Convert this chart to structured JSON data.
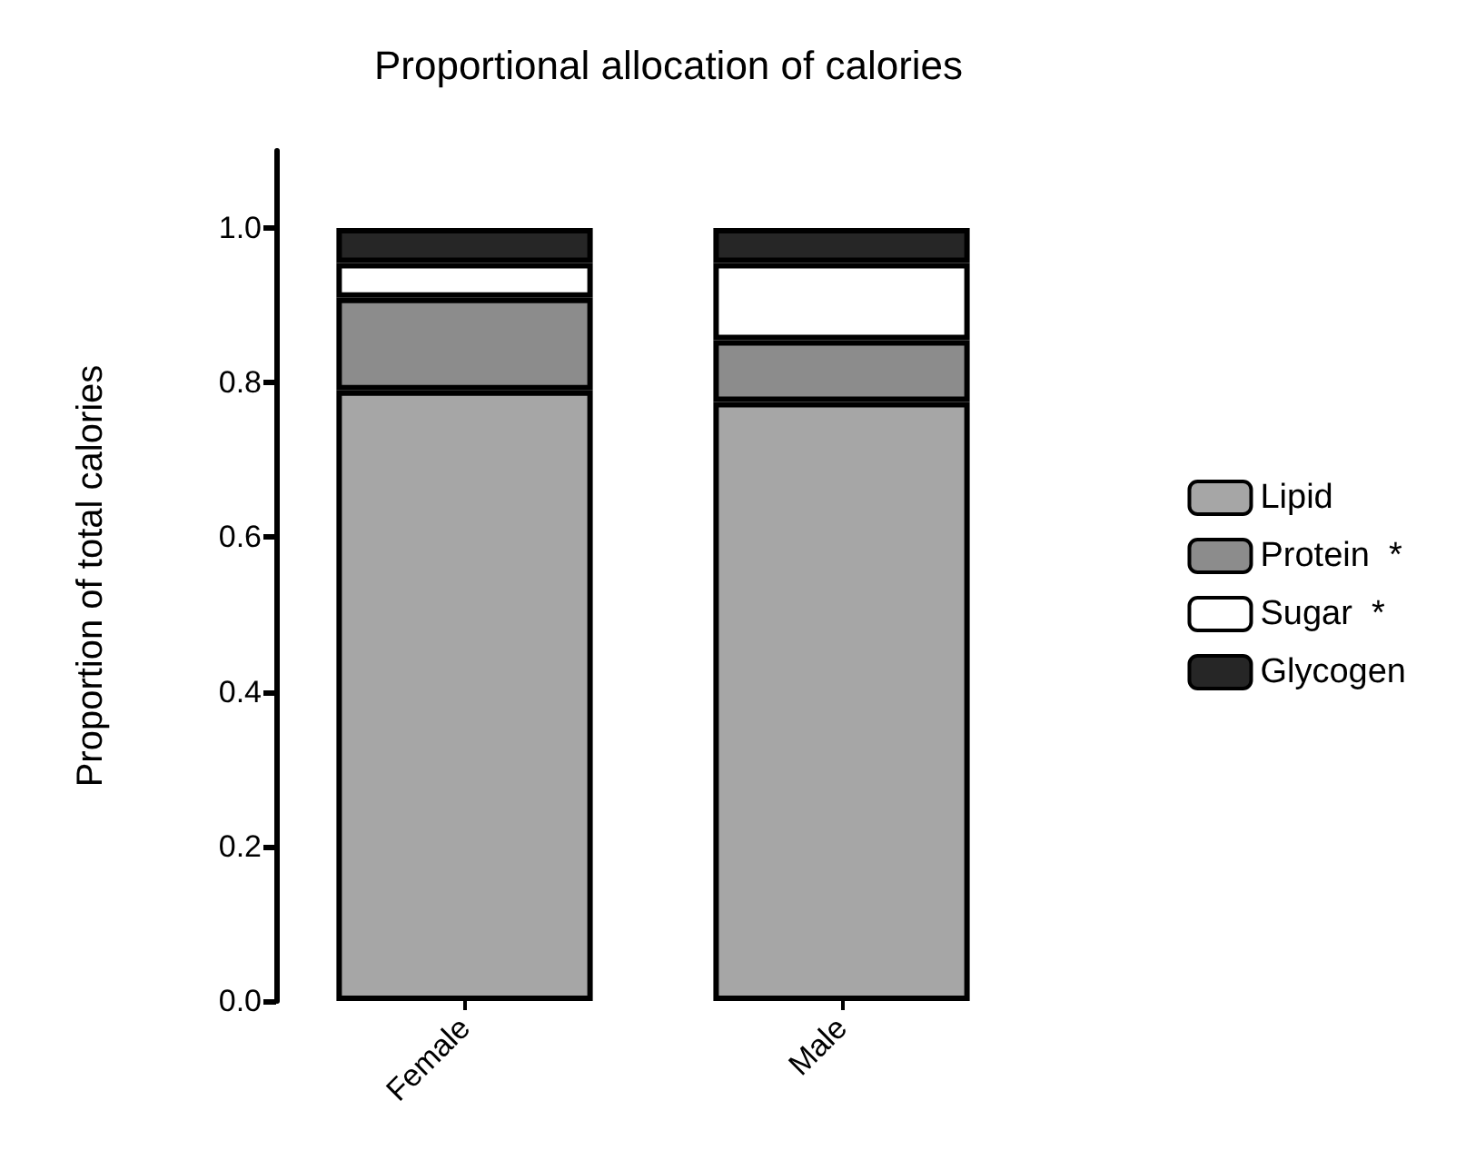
{
  "chart_data": {
    "type": "bar",
    "title": "Proportional allocation of calories",
    "ylabel": "Proportion of total calories",
    "categories": [
      "Female",
      "Male"
    ],
    "stacked": true,
    "legend": "right",
    "grid": false,
    "ylim": [
      0,
      1.1
    ],
    "yticks": [
      {
        "value": 0,
        "label": "0.0"
      },
      {
        "value": 0.2,
        "label": "0.2"
      },
      {
        "value": 0.4,
        "label": "0.4"
      },
      {
        "value": 0.6,
        "label": "0.6"
      },
      {
        "value": 0.8,
        "label": "0.8"
      },
      {
        "value": 1,
        "label": "1.0"
      }
    ],
    "series": [
      {
        "name": "Lipid",
        "color": "#a6a6a6",
        "values": [
          0.79,
          0.775
        ]
      },
      {
        "name": "Protein  *",
        "color": "#8c8c8c",
        "values": [
          0.12,
          0.08
        ]
      },
      {
        "name": "Sugar  *",
        "color": "#ffffff",
        "values": [
          0.045,
          0.1
        ]
      },
      {
        "name": "Glycogen",
        "color": "#262626",
        "values": [
          0.045,
          0.045
        ]
      }
    ]
  }
}
